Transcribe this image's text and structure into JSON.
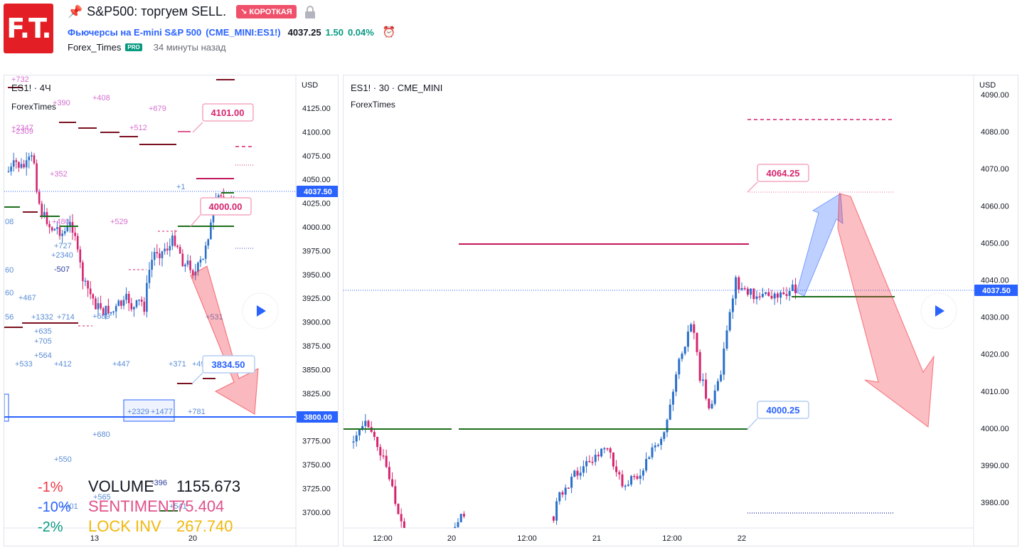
{
  "header": {
    "logo_text": "F.T.",
    "title": "S&P500: торгуем SELL.",
    "badge_short": "↘ КОРОТКАЯ",
    "symbol_name": "Фьючерсы на E-mini S&P 500",
    "symbol_code": "(CME_MINI:ES1!)",
    "price": "4037.25",
    "change": "1.50",
    "change_pct": "0.04%",
    "author": "Forex_Times",
    "pro": "PRO",
    "time_ago": "34 минуты назад"
  },
  "left_chart": {
    "symbol": "ES1! · 4Ч",
    "author": "ForexTimes",
    "currency": "USD",
    "y_ticks": [
      "4125.00",
      "4100.00",
      "4075.00",
      "4050.00",
      "4025.00",
      "4000.00",
      "3975.00",
      "3950.00",
      "3925.00",
      "3900.00",
      "3875.00",
      "3850.00",
      "3825.00",
      "3800.00",
      "3775.00",
      "3750.00",
      "3725.00",
      "3700.00"
    ],
    "x_ticks": [
      "13",
      "20"
    ],
    "price_tag": "4037.50",
    "level_tag": "3800.00",
    "callouts": [
      "4101.00",
      "4000.00",
      "3834.50"
    ],
    "cluster_labels": [
      "+732",
      "+390",
      "+408",
      "+679",
      "+2347",
      "+2309",
      "+512",
      "+352",
      "+529",
      "+480",
      "+727",
      "+2340",
      "-507",
      "+467",
      "+1332",
      "+714",
      "+635",
      "+705",
      "+564",
      "+533",
      "+412",
      "+447",
      "+371",
      "+49",
      "+689",
      "+531",
      "+2329",
      "+1477",
      "+781",
      "+680",
      "+550",
      "-396",
      "+565",
      "+901",
      "+541",
      "+1",
      "08",
      "60",
      "60",
      "56"
    ],
    "stats": [
      {
        "pct": "-1%",
        "label": "VOLUME",
        "value": "1155.673",
        "pct_color": "#f23645",
        "label_color": "#131722",
        "value_color": "#131722"
      },
      {
        "pct": "-10%",
        "label": "SENTIMENT",
        "value": "75.404",
        "pct_color": "#2962ff",
        "label_color": "#e0508a",
        "value_color": "#e0508a"
      },
      {
        "pct": "-2%",
        "label": "LOCK INV",
        "value": "267.740",
        "pct_color": "#089981",
        "label_color": "#f0b90b",
        "value_color": "#f0b90b"
      }
    ]
  },
  "right_chart": {
    "symbol": "ES1! · 30 · CME_MINI",
    "author": "ForexTimes",
    "currency": "USD",
    "y_ticks": [
      "4090.00",
      "4080.00",
      "4070.00",
      "4060.00",
      "4050.00",
      "4040.00",
      "4030.00",
      "4020.00",
      "4010.00",
      "4000.00",
      "3990.00",
      "3980.00"
    ],
    "x_ticks": [
      "12:00",
      "20",
      "12:00",
      "21",
      "12:00",
      "22"
    ],
    "price_tag": "4037.50",
    "callouts": [
      "4064.25",
      "4000.25"
    ]
  },
  "colors": {
    "up": "#089981",
    "red": "#f23645",
    "blue": "#2962ff",
    "pink": "#d6246e"
  }
}
